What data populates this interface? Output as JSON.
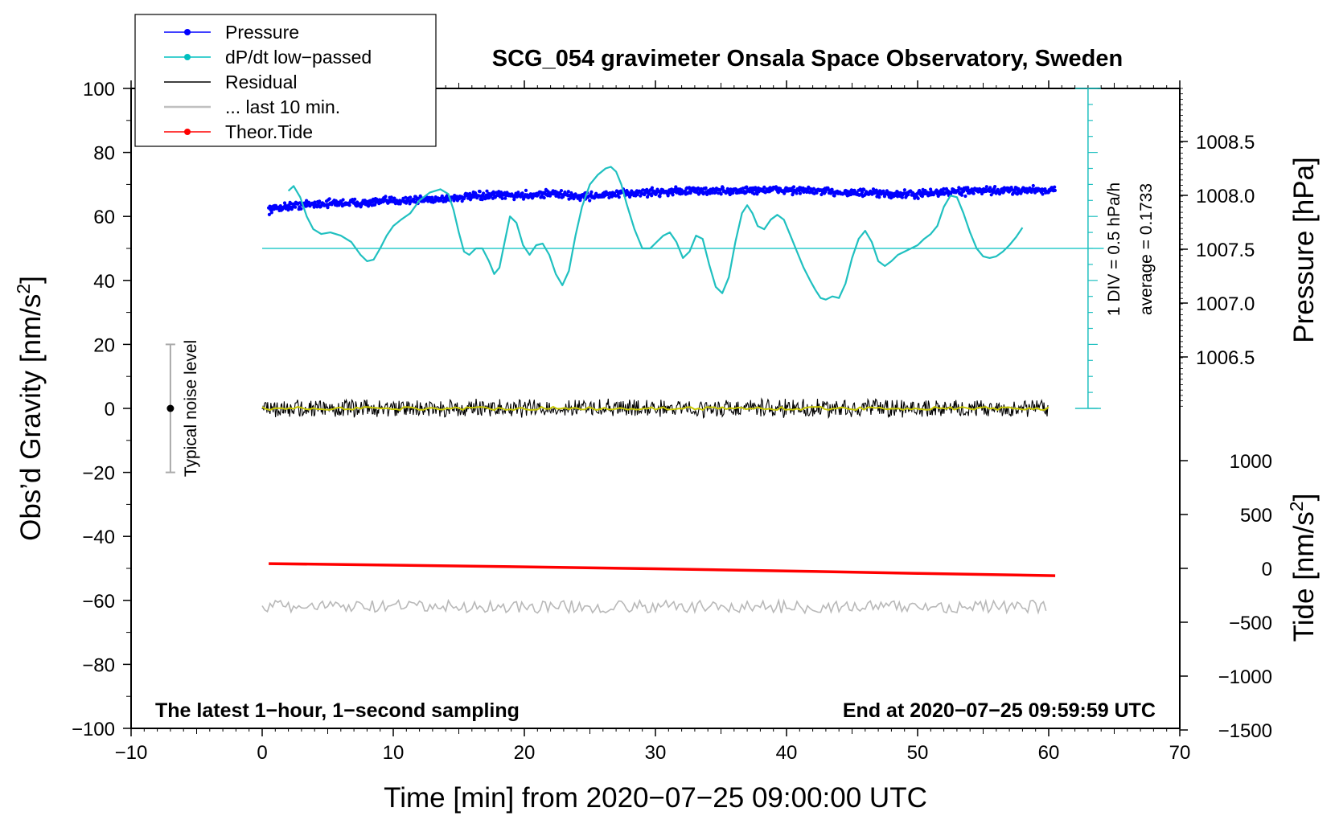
{
  "chart_data": {
    "type": "line",
    "title": "SCG_054 gravimeter Onsala Space Observatory, Sweden",
    "xlabel": "Time [min] from 2020−07−25 09:00:00 UTC",
    "ylabel_left": "Obs’d Gravity [nm/s",
    "ylabel_left_sup": "2",
    "ylabel_left_end": "]",
    "ylabel_right_top": "Pressure [hPa]",
    "ylabel_right_bottom": "Tide [nm/s",
    "ylabel_right_bottom_sup": "2",
    "ylabel_right_bottom_end": "]",
    "xlim": [
      -10,
      70
    ],
    "ylim": [
      -100,
      100
    ],
    "pressure_lim": [
      1006.0,
      1009.0
    ],
    "tide_lim": [
      -1500,
      1500
    ],
    "x_ticks": [
      "−10",
      "0",
      "10",
      "20",
      "30",
      "40",
      "50",
      "60",
      "70"
    ],
    "x_tick_values": [
      -10,
      0,
      10,
      20,
      30,
      40,
      50,
      60,
      70
    ],
    "y_ticks": [
      "−100",
      "−80",
      "−60",
      "−40",
      "−20",
      "0",
      "20",
      "40",
      "60",
      "80",
      "100"
    ],
    "y_tick_values": [
      -100,
      -80,
      -60,
      -40,
      -20,
      0,
      20,
      40,
      60,
      80,
      100
    ],
    "pressure_ticks": [
      "1006.5",
      "1007.0",
      "1007.5",
      "1008.0",
      "1008.5"
    ],
    "pressure_tick_values": [
      1006.5,
      1007.0,
      1007.5,
      1008.0,
      1008.5
    ],
    "tide_ticks": [
      "−1500",
      "−1000",
      "−500",
      "0",
      "500",
      "1000"
    ],
    "tide_tick_values": [
      -1500,
      -1000,
      -500,
      0,
      500,
      1000
    ],
    "legend": [
      {
        "label": "Pressure",
        "color": "#0000ff",
        "marker": true
      },
      {
        "label": "dP/dt low−passed",
        "color": "#00c0c0",
        "marker": true
      },
      {
        "label": "Residual",
        "color": "#000000",
        "marker": false
      },
      {
        "label": "... last 10 min.",
        "color": "#c0c0c0",
        "marker": false
      },
      {
        "label": "Theor.Tide",
        "color": "#ff0000",
        "marker": true
      }
    ],
    "annotations": {
      "footer_left": "The latest 1−hour, 1−second sampling",
      "footer_right": "End at 2020−07−25 09:59:59 UTC",
      "div_label": "1 DIV = 0.5 hPa/h",
      "average_label": "average = 0.1733",
      "noise_label": "Typical noise level"
    },
    "noise_bar": {
      "x": -7,
      "center": 0,
      "low": -20,
      "high": 20
    },
    "dpdt_baseline_y": 50,
    "dpdt_scale_bar": {
      "x": 63,
      "y_from": 0,
      "y_to": 100,
      "divisions": 20
    },
    "series": [
      {
        "name": "Pressure",
        "color": "#0000ff",
        "unit": "hPa",
        "x": [
          0.5,
          2,
          4,
          6,
          8,
          10,
          12,
          14,
          16,
          18,
          20,
          22,
          24,
          26,
          28,
          30,
          32,
          34,
          36,
          38,
          40,
          42,
          44,
          46,
          48,
          50,
          52,
          54,
          56,
          58,
          60.5
        ],
        "values": [
          1007.87,
          1007.9,
          1007.92,
          1007.93,
          1007.93,
          1007.95,
          1007.96,
          1007.97,
          1007.99,
          1008.0,
          1008.0,
          1008.02,
          1007.99,
          1008.0,
          1008.02,
          1008.03,
          1008.04,
          1008.04,
          1008.04,
          1008.05,
          1008.05,
          1008.04,
          1008.03,
          1008.02,
          1008.01,
          1008.01,
          1008.03,
          1008.04,
          1008.04,
          1008.05,
          1008.05
        ]
      },
      {
        "name": "dP/dt low−passed",
        "color": "#00c0c0",
        "unit": "nm/s2 plot position",
        "x": [
          2.0,
          2.4,
          2.9,
          3.4,
          3.9,
          4.5,
          5.2,
          6.0,
          6.8,
          7.5,
          8.0,
          8.5,
          9.0,
          9.5,
          10.0,
          10.6,
          11.3,
          12.0,
          12.8,
          13.6,
          14.2,
          14.6,
          15.0,
          15.4,
          15.8,
          16.3,
          16.8,
          17.3,
          17.7,
          18.1,
          18.5,
          18.9,
          19.4,
          19.9,
          20.4,
          20.9,
          21.4,
          21.9,
          22.4,
          22.9,
          23.4,
          23.9,
          24.4,
          25.0,
          25.6,
          26.2,
          26.6,
          27.0,
          27.4,
          27.8,
          28.4,
          29.0,
          29.6,
          30.1,
          30.6,
          31.1,
          31.6,
          32.1,
          32.6,
          33.1,
          33.6,
          34.1,
          34.6,
          35.1,
          35.6,
          36.1,
          36.6,
          37.0,
          37.4,
          37.8,
          38.3,
          38.8,
          39.3,
          39.8,
          40.3,
          40.8,
          41.3,
          41.8,
          42.2,
          42.6,
          43.0,
          43.5,
          44.0,
          44.5,
          45.0,
          45.5,
          46.0,
          46.5,
          47.0,
          47.5,
          48.0,
          48.5,
          49.0,
          49.5,
          50.0,
          50.5,
          51.0,
          51.5,
          52.0,
          52.5,
          53.0,
          53.5,
          54.0,
          54.5,
          55.0,
          55.5,
          56.0,
          56.5,
          57.0,
          57.5,
          58.0
        ],
        "values": [
          68,
          69.5,
          66,
          60,
          56,
          54.5,
          55,
          54,
          52,
          48,
          46,
          46.5,
          50,
          54,
          57,
          59,
          61,
          65,
          67.5,
          68.5,
          67,
          62,
          55,
          49,
          48,
          50,
          50,
          46,
          42,
          44,
          52,
          60,
          58,
          51,
          48,
          51,
          51.5,
          48,
          42,
          38.5,
          43,
          54,
          63,
          70,
          73,
          75,
          75.5,
          74,
          70,
          64,
          56,
          50,
          50,
          52,
          54,
          55,
          52,
          47,
          49,
          54,
          53,
          45,
          38,
          36,
          41,
          52,
          61,
          63.5,
          61,
          57,
          56,
          59,
          60.5,
          59,
          54,
          49,
          44,
          40,
          37,
          34.5,
          34,
          35,
          34.5,
          39,
          47,
          53,
          55.5,
          52,
          46,
          44.5,
          46,
          48,
          49,
          50,
          51,
          53,
          54.5,
          57,
          63,
          66.5,
          66,
          61,
          55,
          50,
          47.5,
          47,
          47.5,
          49,
          51,
          53.5,
          56.5
        ]
      },
      {
        "name": "Residual",
        "color": "#000000",
        "unit": "nm/s2",
        "x": [
          0,
          60
        ],
        "values": [
          0,
          0
        ],
        "noise_amplitude": 2.5
      },
      {
        "name": "Residual smoothed",
        "color": "#c8c800",
        "unit": "nm/s2",
        "x": [
          0,
          60
        ],
        "values": [
          0,
          0
        ]
      },
      {
        "name": "... last 10 min.",
        "color": "#c0c0c0",
        "unit": "nm/s2",
        "x": [
          0,
          60
        ],
        "values": [
          -62,
          -62
        ],
        "noise_amplitude": 2
      },
      {
        "name": "Theor.Tide",
        "color": "#ff0000",
        "unit": "nm/s2 (tide axis)",
        "x": [
          0.5,
          10,
          20,
          30,
          40,
          50,
          60.5
        ],
        "values": [
          44,
          30,
          14,
          -4,
          -24,
          -46,
          -68
        ]
      }
    ]
  }
}
